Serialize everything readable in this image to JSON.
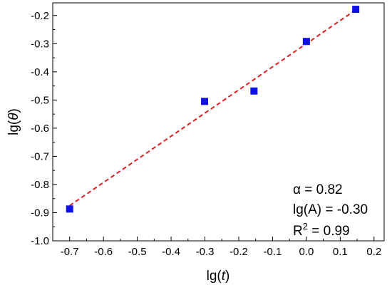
{
  "chart_data": {
    "type": "scatter",
    "title": "",
    "xlabel": {
      "prefix": "lg(",
      "var": "t",
      "suffix": ")"
    },
    "ylabel": {
      "prefix": "lg(",
      "var": "θ",
      "suffix": ")"
    },
    "xlim": [
      -0.75,
      0.23
    ],
    "ylim": [
      -1.0,
      -0.155
    ],
    "x_ticks": [
      -0.7,
      -0.6,
      -0.5,
      -0.4,
      -0.3,
      -0.2,
      -0.1,
      0.0,
      0.1,
      0.2
    ],
    "x_tick_labels": [
      "-0.7",
      "-0.6",
      "-0.5",
      "-0.4",
      "-0.3",
      "-0.2",
      "-0.1",
      "0.0",
      "0.1",
      "0.2"
    ],
    "y_ticks": [
      -1.0,
      -0.9,
      -0.8,
      -0.7,
      -0.6,
      -0.5,
      -0.4,
      -0.3,
      -0.2
    ],
    "y_tick_labels": [
      "-1.0",
      "-0.9",
      "-0.8",
      "-0.7",
      "-0.6",
      "-0.5",
      "-0.4",
      "-0.3",
      "-0.2"
    ],
    "grid": false,
    "series": [
      {
        "type": "scatter",
        "marker": "square",
        "color": "#1010e8",
        "x": [
          -0.7,
          -0.301,
          -0.155,
          0.0,
          0.146
        ],
        "y": [
          -0.887,
          -0.505,
          -0.468,
          -0.292,
          -0.178
        ]
      },
      {
        "type": "line",
        "style": "dashed",
        "color": "#e02020",
        "x": [
          -0.7,
          0.146
        ],
        "y": [
          -0.875,
          -0.18
        ]
      }
    ],
    "annotations": {
      "alpha": "α = 0.82",
      "lgA": "lg(A) = -0.30",
      "r2_prefix": "R",
      "r2_sup": "2",
      "r2_suffix": " = 0.99"
    }
  }
}
